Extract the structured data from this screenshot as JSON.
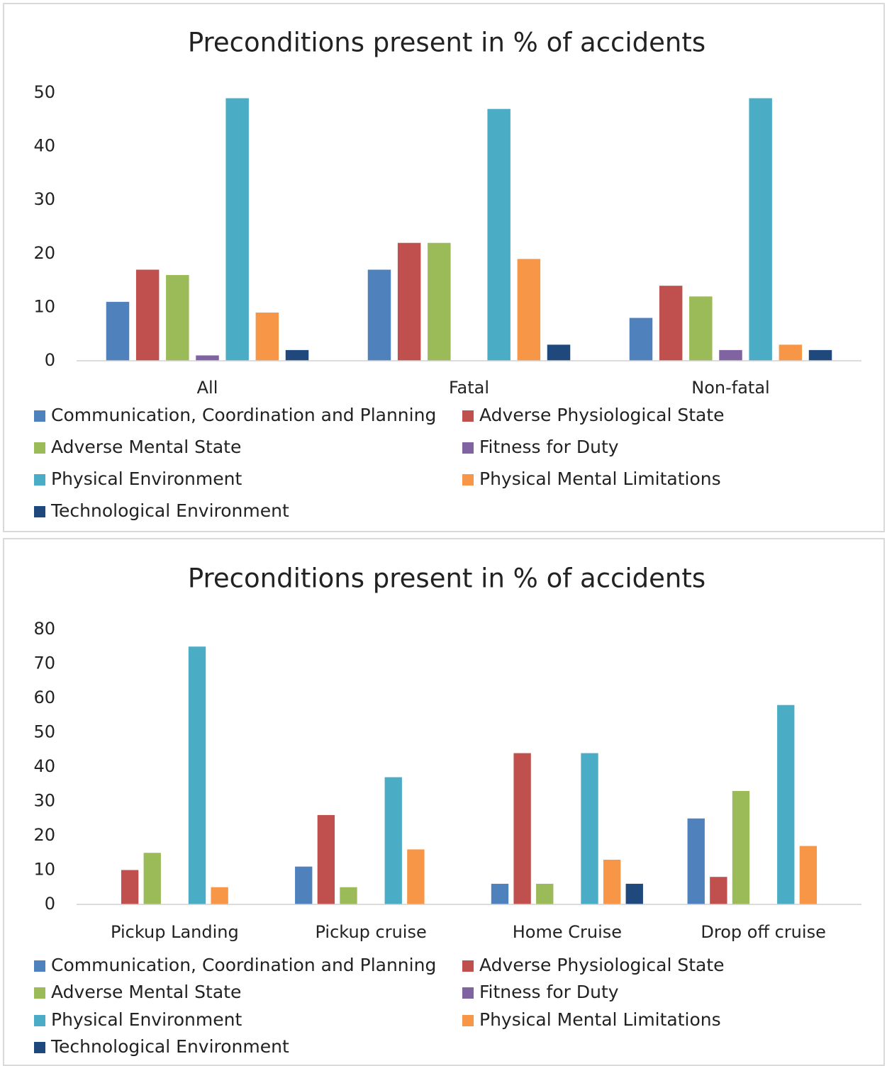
{
  "chart_data": [
    {
      "type": "bar",
      "title": "Preconditions present in % of accidents",
      "categories": [
        "All",
        "Fatal",
        "Non-fatal"
      ],
      "series": [
        {
          "name": "Communication, Coordination and Planning",
          "color": "#4f81bd",
          "values": [
            11,
            17,
            8
          ]
        },
        {
          "name": "Adverse Physiological State",
          "color": "#c0504d",
          "values": [
            17,
            22,
            14
          ]
        },
        {
          "name": "Adverse Mental State",
          "color": "#9bbb59",
          "values": [
            16,
            22,
            12
          ]
        },
        {
          "name": "Fitness for Duty",
          "color": "#8064a2",
          "values": [
            1,
            0,
            2
          ]
        },
        {
          "name": "Physical Environment",
          "color": "#4bacc6",
          "values": [
            49,
            47,
            49
          ]
        },
        {
          "name": "Physical Mental Limitations",
          "color": "#f79646",
          "values": [
            9,
            19,
            3
          ]
        },
        {
          "name": "Technological Environment",
          "color": "#1f497d",
          "values": [
            2,
            3,
            2
          ]
        }
      ],
      "ylim": [
        0,
        50
      ],
      "yticks": [
        0,
        10,
        20,
        30,
        40,
        50
      ],
      "grid": false,
      "legend": "bottom"
    },
    {
      "type": "bar",
      "title": "Preconditions present in % of accidents",
      "categories": [
        "Pickup Landing",
        "Pickup cruise",
        "Home Cruise",
        "Drop off cruise"
      ],
      "series": [
        {
          "name": "Communication, Coordination and Planning",
          "color": "#4f81bd",
          "values": [
            0,
            11,
            6,
            25
          ]
        },
        {
          "name": "Adverse Physiological State",
          "color": "#c0504d",
          "values": [
            10,
            26,
            44,
            8
          ]
        },
        {
          "name": "Adverse Mental State",
          "color": "#9bbb59",
          "values": [
            15,
            5,
            6,
            33
          ]
        },
        {
          "name": "Fitness for Duty",
          "color": "#8064a2",
          "values": [
            0,
            0,
            0,
            0
          ]
        },
        {
          "name": "Physical Environment",
          "color": "#4bacc6",
          "values": [
            75,
            37,
            44,
            58
          ]
        },
        {
          "name": "Physical Mental Limitations",
          "color": "#f79646",
          "values": [
            5,
            16,
            13,
            17
          ]
        },
        {
          "name": "Technological Environment",
          "color": "#1f497d",
          "values": [
            0,
            0,
            6,
            0
          ]
        }
      ],
      "ylim": [
        0,
        80
      ],
      "yticks": [
        0,
        10,
        20,
        30,
        40,
        50,
        60,
        70,
        80
      ],
      "grid": false,
      "legend": "bottom"
    }
  ]
}
